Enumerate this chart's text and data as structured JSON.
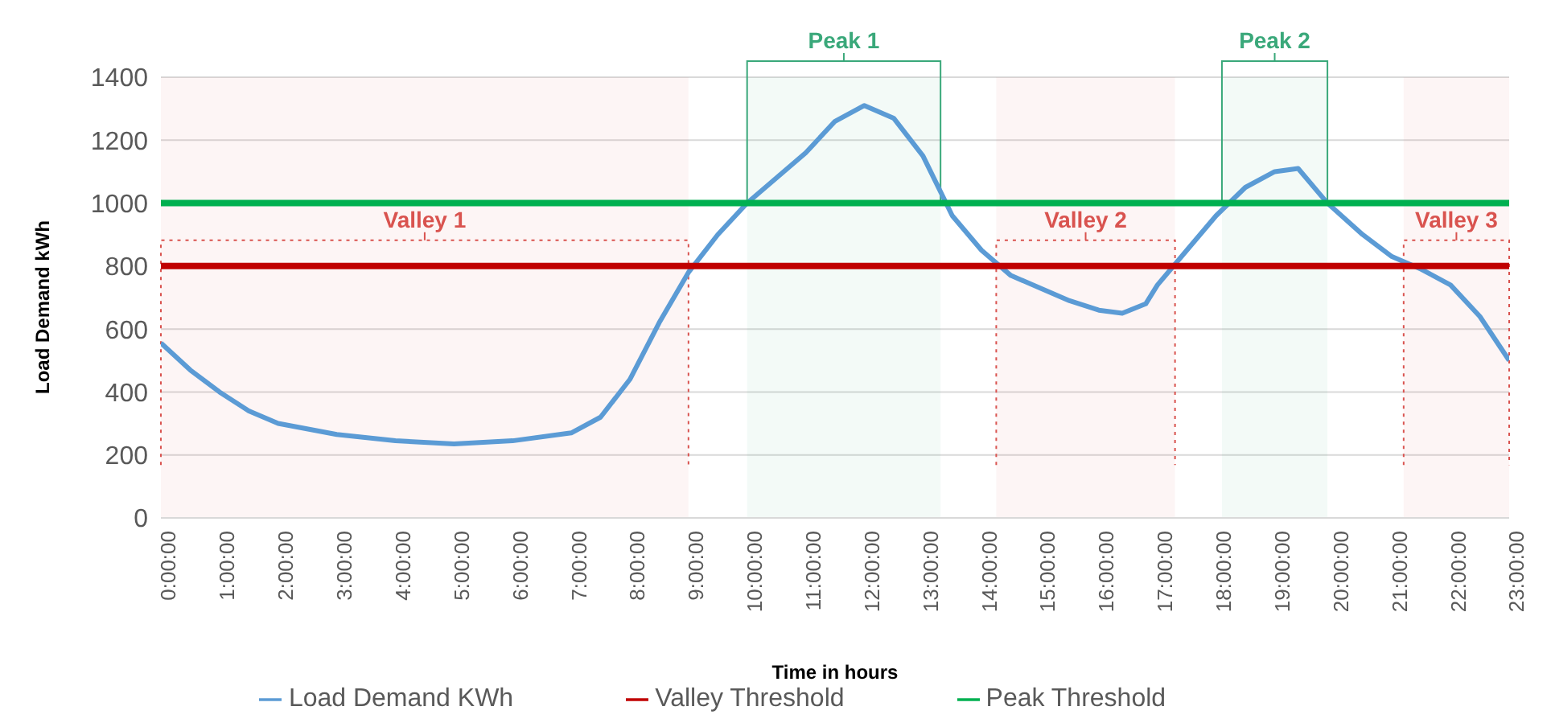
{
  "chart_data": {
    "type": "line",
    "xlabel": "Time in hours",
    "ylabel": "Load Demand kWh",
    "xlim": [
      0,
      23
    ],
    "xticks": [
      {
        "value": 0,
        "label": "0:00:00"
      },
      {
        "value": 1,
        "label": "1:00:00"
      },
      {
        "value": 2,
        "label": "2:00:00"
      },
      {
        "value": 3,
        "label": "3:00:00"
      },
      {
        "value": 4,
        "label": "4:00:00"
      },
      {
        "value": 5,
        "label": "5:00:00"
      },
      {
        "value": 6,
        "label": "6:00:00"
      },
      {
        "value": 7,
        "label": "7:00:00"
      },
      {
        "value": 8,
        "label": "8:00:00"
      },
      {
        "value": 9,
        "label": "9:00:00"
      },
      {
        "value": 10,
        "label": "10:00:00"
      },
      {
        "value": 11,
        "label": "11:00:00"
      },
      {
        "value": 12,
        "label": "12:00:00"
      },
      {
        "value": 13,
        "label": "13:00:00"
      },
      {
        "value": 14,
        "label": "14:00:00"
      },
      {
        "value": 15,
        "label": "15:00:00"
      },
      {
        "value": 16,
        "label": "16:00:00"
      },
      {
        "value": 17,
        "label": "17:00:00"
      },
      {
        "value": 18,
        "label": "18:00:00"
      },
      {
        "value": 19,
        "label": "19:00:00"
      },
      {
        "value": 20,
        "label": "20:00:00"
      },
      {
        "value": 21,
        "label": "21:00:00"
      },
      {
        "value": 22,
        "label": "22:00:00"
      },
      {
        "value": 23,
        "label": "23:00:00"
      }
    ],
    "ylim": [
      0,
      1400
    ],
    "yticks": [
      0,
      200,
      400,
      600,
      800,
      1000,
      1200,
      1400
    ],
    "grid": "y",
    "legend": "bottom",
    "marker": "none",
    "series": [
      {
        "name": "Load Demand KWh",
        "color": "#5b9bd5",
        "x": [
          0,
          0.5,
          1,
          1.5,
          2,
          3,
          4,
          5,
          6,
          7,
          7.5,
          8,
          8.5,
          9,
          9.5,
          10,
          10.5,
          11,
          11.5,
          12,
          12.5,
          13,
          13.5,
          14,
          14.5,
          15,
          15.5,
          16,
          16.4,
          16.8,
          17,
          17.5,
          18,
          18.5,
          19,
          19.4,
          19.9,
          20.5,
          21,
          21.5,
          22,
          22.5,
          23
        ],
        "values": [
          556,
          470,
          400,
          340,
          300,
          265,
          245,
          235,
          245,
          270,
          320,
          440,
          620,
          780,
          900,
          1000,
          1080,
          1160,
          1260,
          1310,
          1270,
          1150,
          960,
          850,
          770,
          730,
          690,
          660,
          650,
          680,
          740,
          850,
          960,
          1050,
          1100,
          1110,
          1000,
          900,
          830,
          790,
          740,
          640,
          500
        ]
      },
      {
        "name": "Valley Threshold",
        "color": "#c00000",
        "x": [
          0,
          23
        ],
        "values": [
          800,
          800
        ]
      },
      {
        "name": "Peak Threshold",
        "color": "#00b050",
        "x": [
          0,
          23
        ],
        "values": [
          1000,
          1000
        ]
      }
    ],
    "bands": [
      {
        "axis": "x",
        "from": 0,
        "to": 9,
        "label": "Valley 1",
        "color": "#d9534f"
      },
      {
        "axis": "x",
        "from": 10,
        "to": 13.3,
        "label": "Peak 1",
        "color": "#3aa87a"
      },
      {
        "axis": "x",
        "from": 14.25,
        "to": 17.3,
        "label": "Valley 2",
        "color": "#d9534f"
      },
      {
        "axis": "x",
        "from": 18.1,
        "to": 19.9,
        "label": "Peak 2",
        "color": "#3aa87a"
      },
      {
        "axis": "x",
        "from": 21.2,
        "to": 23,
        "label": "Valley 3",
        "color": "#d9534f"
      }
    ]
  }
}
